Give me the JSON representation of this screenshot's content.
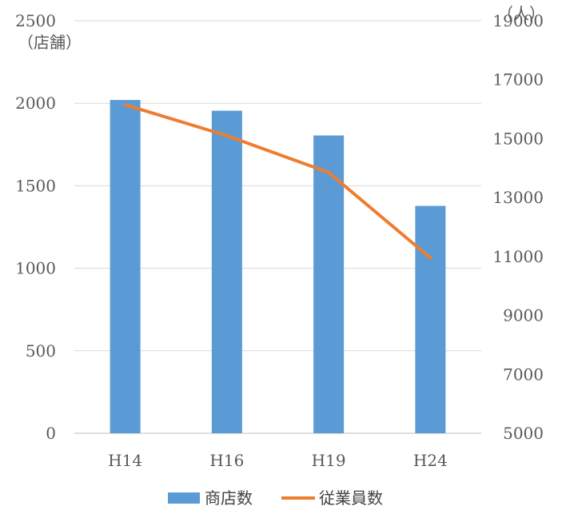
{
  "chart_data": {
    "type": "bar",
    "categories": [
      "H14",
      "H16",
      "H19",
      "H24"
    ],
    "series": [
      {
        "name": "商店数",
        "type": "bar",
        "axis": "left",
        "color": "#5B9BD5",
        "values": [
          2020,
          1955,
          1805,
          1378
        ]
      },
      {
        "name": "従業員数",
        "type": "line",
        "axis": "right",
        "color": "#ED7D31",
        "values": [
          16150,
          15100,
          13850,
          10950
        ]
      }
    ],
    "y_left": {
      "label": "（店舗）",
      "ylim": [
        0,
        2500
      ],
      "ticks": [
        "0",
        "500",
        "1000",
        "1500",
        "2000",
        "2500"
      ]
    },
    "y_right": {
      "label": "（人）",
      "ylim": [
        5000,
        19000
      ],
      "ticks": [
        "5000",
        "7000",
        "9000",
        "11000",
        "13000",
        "15000",
        "17000",
        "19000"
      ]
    },
    "grid": true,
    "legend": "bottom"
  }
}
